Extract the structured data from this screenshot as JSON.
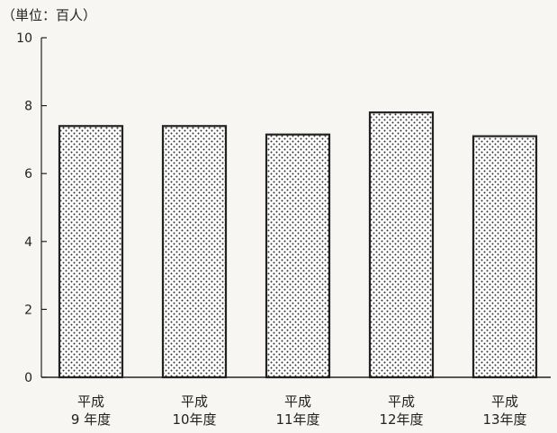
{
  "chart_data": {
    "type": "bar",
    "unit_label": "（単位：百人）",
    "categories": [
      [
        "平成",
        "9 年度"
      ],
      [
        "平成",
        "10年度"
      ],
      [
        "平成",
        "11年度"
      ],
      [
        "平成",
        "12年度"
      ],
      [
        "平成",
        "13年度"
      ]
    ],
    "values": [
      7.4,
      7.4,
      7.15,
      7.8,
      7.1
    ],
    "ylim": [
      0,
      10
    ],
    "yticks": [
      0,
      2,
      4,
      6,
      8,
      10
    ],
    "legend": "none",
    "grid": false,
    "bar_fill": "dotted",
    "colors": {
      "bar_border": "#222222",
      "dot": "#333333",
      "axis": "#222222",
      "background": "#f7f6f2"
    }
  }
}
